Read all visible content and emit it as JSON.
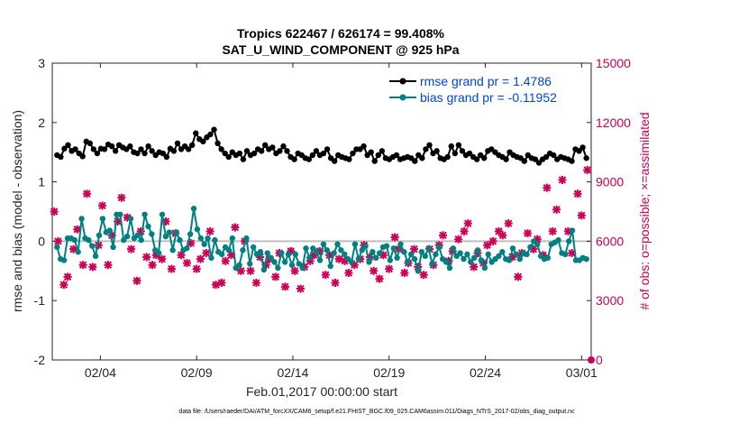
{
  "chart_data": {
    "type": "line",
    "title": [
      "Tropics 622467 / 626174 = 99.408%",
      "SAT_U_WIND_COMPONENT @ 925 hPa"
    ],
    "xlabel": "Feb.01,2017 00:00:00 start",
    "ylabel": "rmse and bias (model - observation)",
    "ylabel_right": "# of obs: o=possible; ×=assimilated",
    "footer": "data file: /Users/raeder/DAI/ATM_forcXX/CAM6_setup/f.e21.FHIST_BGC.f09_025.CAM6assim.011/Diags_NTrS_2017-02/obs_diag_output.nc",
    "xlim": [
      0.5,
      28.5
    ],
    "ylim": [
      -2,
      3
    ],
    "ylim_right": [
      0,
      15000
    ],
    "x_ticks": [
      3,
      8,
      13,
      18,
      23,
      28
    ],
    "x_tick_labels": [
      "02/04",
      "02/09",
      "02/14",
      "02/19",
      "02/24",
      "03/01"
    ],
    "y_ticks": [
      -2,
      -1,
      0,
      1,
      2,
      3
    ],
    "y_tick_labels": [
      "-2",
      "-1",
      "0",
      "1",
      "2",
      "3"
    ],
    "y_ticks_right": [
      0,
      3000,
      6000,
      9000,
      12000,
      15000
    ],
    "y_tick_labels_right": [
      "0",
      "3000",
      "6000",
      "9000",
      "12000",
      "15000"
    ],
    "legend": {
      "position": "top-right",
      "entries": [
        "rmse grand pr = 1.4786",
        "bias grand pr = -0.11952"
      ]
    },
    "series": [
      {
        "name": "rmse grand pr = 1.4786",
        "color": "#000000",
        "values": [
          1.45,
          1.42,
          1.56,
          1.62,
          1.52,
          1.55,
          1.48,
          1.43,
          1.68,
          1.65,
          1.55,
          1.48,
          1.56,
          1.55,
          1.63,
          1.6,
          1.52,
          1.62,
          1.58,
          1.55,
          1.6,
          1.5,
          1.48,
          1.55,
          1.48,
          1.6,
          1.52,
          1.45,
          1.5,
          1.48,
          1.42,
          1.56,
          1.52,
          1.65,
          1.55,
          1.6,
          1.55,
          1.62,
          1.82,
          1.72,
          1.68,
          1.75,
          1.8,
          1.88,
          1.65,
          1.55,
          1.48,
          1.42,
          1.5,
          1.45,
          1.48,
          1.38,
          1.52,
          1.45,
          1.48,
          1.55,
          1.52,
          1.62,
          1.55,
          1.58,
          1.48,
          1.52,
          1.6,
          1.52,
          1.42,
          1.38,
          1.48,
          1.45,
          1.4,
          1.38,
          1.45,
          1.52,
          1.45,
          1.48,
          1.55,
          1.4,
          1.35,
          1.45,
          1.42,
          1.4,
          1.38,
          1.48,
          1.55,
          1.55,
          1.6,
          1.45,
          1.5,
          1.35,
          1.45,
          1.52,
          1.4,
          1.38,
          1.42,
          1.45,
          1.38,
          1.4,
          1.42,
          1.4,
          1.35,
          1.45,
          1.4,
          1.55,
          1.62,
          1.48,
          1.52,
          1.4,
          1.38,
          1.42,
          1.6,
          1.48,
          1.62,
          1.52,
          1.45,
          1.48,
          1.42,
          1.38,
          1.45,
          1.4,
          1.52,
          1.55,
          1.5,
          1.45,
          1.42,
          1.38,
          1.5,
          1.45,
          1.42,
          1.4,
          1.35,
          1.45,
          1.4,
          1.38,
          1.32,
          1.38,
          1.42,
          1.48,
          1.45,
          1.38,
          1.42,
          1.4,
          1.38,
          1.35,
          1.55,
          1.52,
          1.58,
          1.4
        ]
      },
      {
        "name": "bias grand pr = -0.11952",
        "color": "#008080",
        "values": [
          -0.1,
          -0.3,
          -0.32,
          0.05,
          0.05,
          0.02,
          -0.18,
          0.38,
          0.05,
          0.02,
          -0.08,
          -0.25,
          0.1,
          0.38,
          0.15,
          0.18,
          -0.1,
          0.45,
          0.45,
          0.02,
          0.08,
          0.38,
          0.05,
          0.1,
          0.02,
          0.45,
          0.25,
          0.12,
          -0.15,
          -0.2,
          0.45,
          0.08,
          0.15,
          -0.15,
          0.15,
          0.02,
          -0.15,
          -0.12,
          0.12,
          0.55,
          0.2,
          0.05,
          -0.05,
          0.05,
          -0.28,
          0.02,
          -0.18,
          -0.22,
          -0.1,
          -0.15,
          0.05,
          -0.45,
          -0.4,
          -0.15,
          0.05,
          -0.38,
          -0.1,
          -0.22,
          -0.18,
          -0.48,
          -0.2,
          -0.28,
          -0.35,
          -0.45,
          -0.2,
          -0.35,
          -0.22,
          -0.4,
          -0.22,
          -0.38,
          -0.45,
          -0.12,
          -0.28,
          -0.12,
          -0.18,
          -0.32,
          -0.05,
          -0.15,
          -0.42,
          -0.2,
          -0.05,
          -0.15,
          -0.22,
          -0.3,
          -0.35,
          -0.05,
          -0.3,
          -0.15,
          -0.08,
          -0.35,
          -0.18,
          -0.28,
          -0.2,
          -0.1,
          -0.08,
          -0.32,
          -0.12,
          -0.28,
          -0.05,
          -0.18,
          -0.35,
          -0.22,
          -0.3,
          -0.5,
          -0.18,
          -0.25,
          -0.12,
          -0.38,
          -0.22,
          -0.1,
          -0.3,
          -0.35,
          -0.45,
          -0.12,
          -0.25,
          -0.2,
          -0.3,
          -0.22,
          -0.35,
          -0.28,
          -0.15,
          -0.32,
          -0.45,
          -0.22,
          -0.35,
          -0.3,
          -0.25,
          -0.18,
          -0.3,
          -0.32,
          -0.12,
          -0.22,
          -0.3,
          -0.2,
          -0.22,
          -0.1,
          0.0,
          -0.05,
          -0.25,
          -0.3,
          -0.28,
          -0.05,
          -0.02,
          0.02,
          -0.2,
          -0.22,
          0.0,
          0.18,
          -0.32,
          -0.32,
          -0.28,
          -0.3
        ]
      },
      {
        "name": "# of obs assimilated (right axis)",
        "color": "#cc0055",
        "marker": "x",
        "x": [
          0.6,
          0.8,
          1.1,
          1.3,
          1.6,
          1.8,
          2.1,
          2.3,
          2.6,
          2.9,
          3.1,
          3.4,
          3.6,
          3.9,
          4.1,
          4.4,
          4.6,
          4.9,
          5.1,
          5.4,
          5.7,
          5.9,
          6.2,
          6.4,
          6.7,
          6.9,
          7.2,
          7.5,
          7.7,
          8.0,
          8.2,
          8.5,
          8.7,
          9.0,
          9.3,
          9.5,
          9.8,
          10.0,
          10.3,
          10.5,
          10.8,
          11.1,
          11.3,
          11.6,
          11.8,
          12.1,
          12.3,
          12.6,
          12.9,
          13.1,
          13.4,
          13.6,
          13.9,
          14.1,
          14.4,
          14.7,
          14.9,
          15.2,
          15.4,
          15.7,
          15.9,
          16.2,
          16.5,
          16.7,
          17.0,
          17.2,
          17.5,
          17.7,
          18.0,
          18.3,
          18.5,
          18.8,
          19.0,
          19.3,
          19.5,
          19.8,
          20.1,
          20.3,
          20.6,
          20.8,
          21.1,
          21.3,
          21.6,
          21.9,
          22.1,
          22.4,
          22.6,
          22.9,
          23.1,
          23.4,
          23.7,
          23.9,
          24.2,
          24.4,
          24.7,
          24.9,
          25.2,
          25.5,
          25.7,
          26.0,
          26.2,
          26.5,
          26.7,
          27.0,
          27.3,
          27.5,
          27.8,
          28.0,
          28.3
        ],
        "values": [
          7500,
          6000,
          3800,
          4200,
          5600,
          6600,
          4800,
          8400,
          4700,
          5800,
          7800,
          4800,
          6300,
          7000,
          8200,
          7200,
          5600,
          4000,
          6500,
          5200,
          4800,
          5300,
          5100,
          7000,
          4600,
          6400,
          5300,
          4900,
          5900,
          4600,
          5100,
          5400,
          6500,
          3800,
          3900,
          5000,
          5300,
          6700,
          4500,
          6000,
          4500,
          3900,
          5200,
          4800,
          5100,
          4200,
          5400,
          3700,
          5500,
          4500,
          3600,
          4700,
          5000,
          5300,
          5500,
          4300,
          5300,
          3900,
          5100,
          5000,
          4400,
          4800,
          5100,
          5800,
          5200,
          4500,
          4100,
          5300,
          4600,
          6200,
          5600,
          4400,
          4900,
          5600,
          4700,
          4300,
          5600,
          4800,
          5800,
          6300,
          5000,
          5500,
          6100,
          6500,
          6900,
          4700,
          5400,
          4900,
          5800,
          6000,
          6500,
          6300,
          6900,
          5200,
          4200,
          5400,
          6400,
          5600,
          6100,
          5300,
          8700,
          6500,
          7600,
          9100,
          6500,
          5400,
          8400,
          7300,
          9600
        ]
      }
    ]
  }
}
